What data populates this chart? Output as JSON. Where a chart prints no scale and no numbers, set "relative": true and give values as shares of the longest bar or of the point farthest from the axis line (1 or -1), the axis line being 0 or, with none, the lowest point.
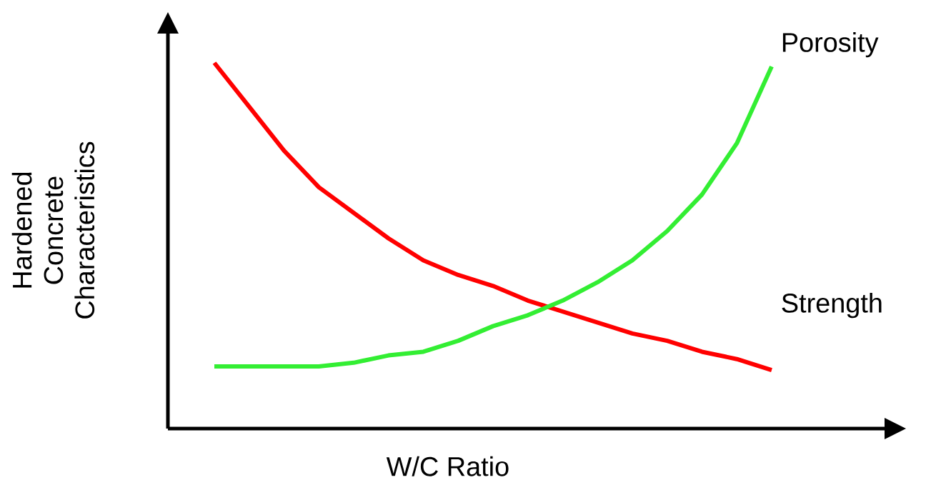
{
  "chart_data": {
    "type": "line",
    "relative": true,
    "xlabel": "W/C Ratio",
    "ylabel": "Hardened Concrete Characteristics",
    "categories": [
      null,
      null,
      null,
      null,
      null,
      null,
      null,
      null,
      null,
      null,
      null,
      null,
      null,
      null,
      null,
      null,
      null
    ],
    "series": [
      {
        "name": "Strength",
        "color": "#ff0000",
        "values": [
          1.0,
          0.88,
          0.76,
          0.66,
          0.59,
          0.52,
          0.46,
          0.42,
          0.39,
          0.35,
          0.32,
          0.29,
          0.26,
          0.24,
          0.21,
          0.19,
          0.16
        ]
      },
      {
        "name": "Porosity",
        "color": "#33ee33",
        "values": [
          0.17,
          0.17,
          0.17,
          0.17,
          0.18,
          0.2,
          0.21,
          0.24,
          0.28,
          0.31,
          0.35,
          0.4,
          0.46,
          0.54,
          0.64,
          0.78,
          0.99
        ]
      }
    ],
    "legend": false,
    "marker": "none",
    "line_style": "solid"
  }
}
